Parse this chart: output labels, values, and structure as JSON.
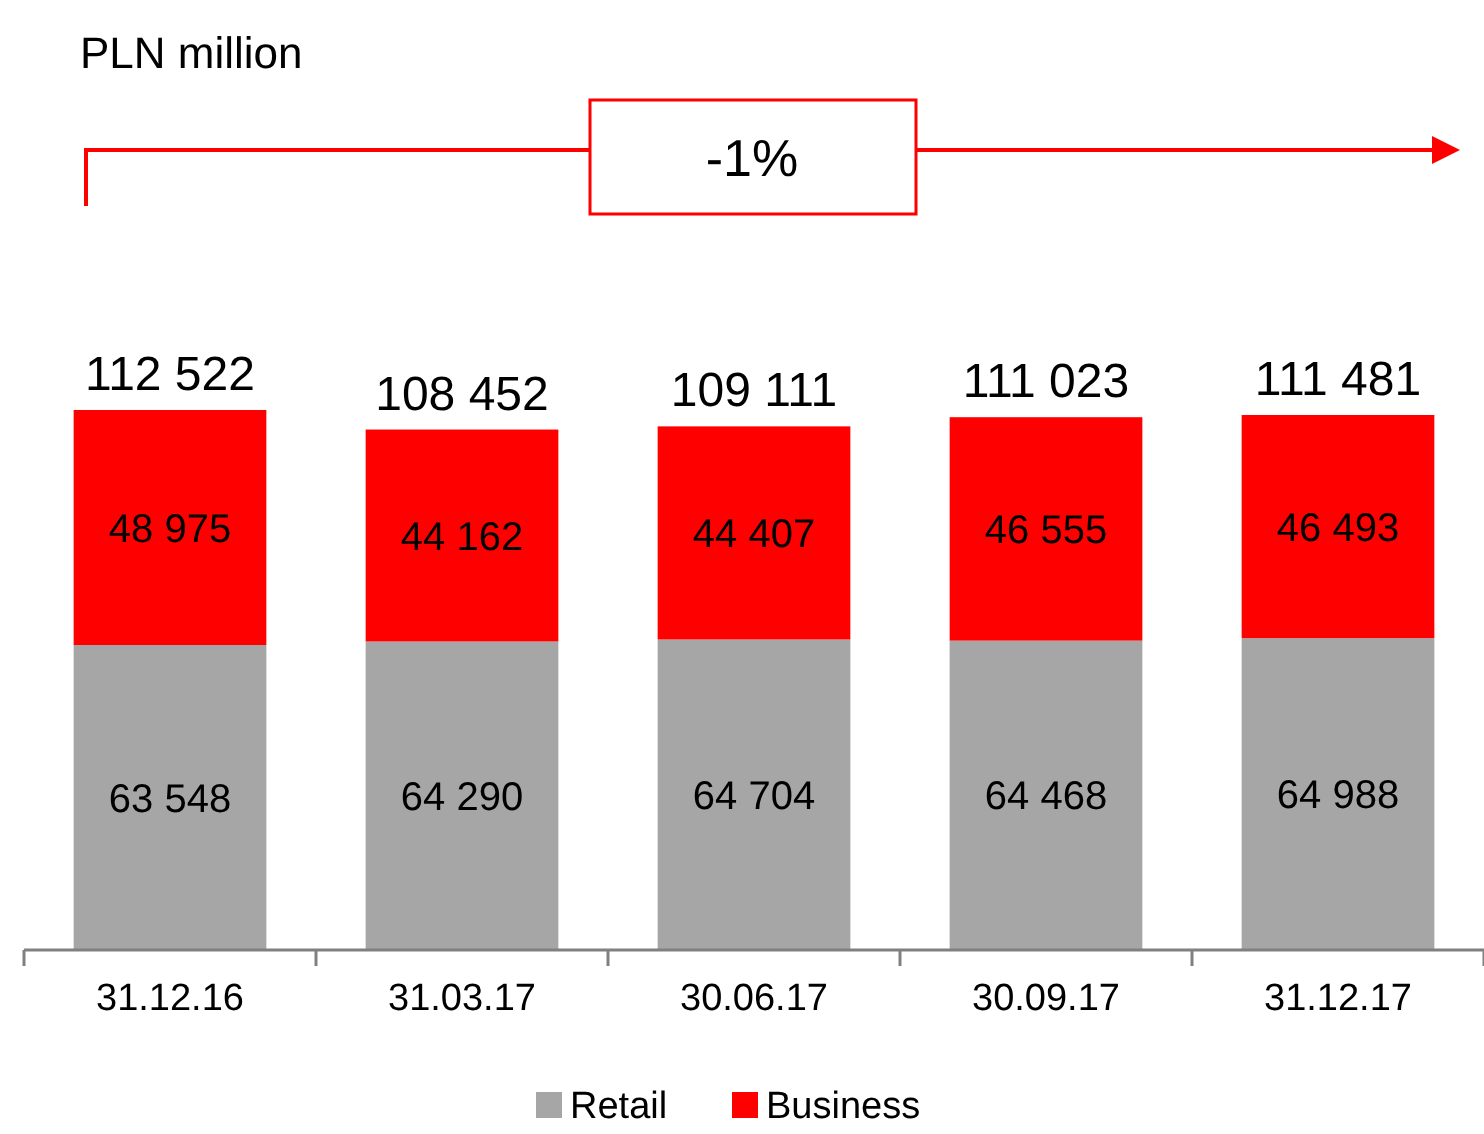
{
  "chart_data": {
    "type": "bar",
    "stacked": true,
    "categories": [
      "31.12.16",
      "31.03.17",
      "30.06.17",
      "30.09.17",
      "31.12.17"
    ],
    "series": [
      {
        "name": "Retail",
        "color": "#a6a6a6",
        "values": [
          63548,
          64290,
          64704,
          64468,
          64988
        ],
        "value_labels": [
          "63 548",
          "64 290",
          "64 704",
          "64 468",
          "64 988"
        ]
      },
      {
        "name": "Business",
        "color": "#ff0000",
        "values": [
          48975,
          44162,
          44407,
          46555,
          46493
        ],
        "value_labels": [
          "48 975",
          "44 162",
          "44 407",
          "46 555",
          "46 493"
        ]
      }
    ],
    "totals": [
      "112 522",
      "108 452",
      "109 111",
      "111 023",
      "111 481"
    ],
    "annotations": [
      "PLN million",
      "-1%"
    ],
    "legend": "bottom"
  }
}
